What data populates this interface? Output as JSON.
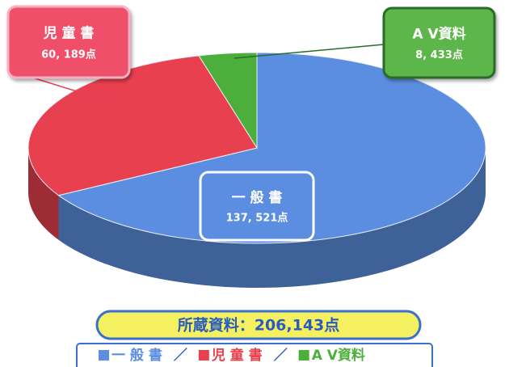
{
  "chart_data": {
    "type": "pie3d",
    "categories": [
      "一 般 書",
      "児 童 書",
      "A V資料"
    ],
    "values": [
      137521,
      60189,
      8433
    ],
    "value_labels": [
      "137, 521点",
      "60, 189点",
      "8, 433点"
    ],
    "colors": [
      "#5b8ee0",
      "#e8404e",
      "#4caf3c"
    ],
    "total_label": "所蔵資料：206,143点",
    "legend_separator": "／"
  }
}
